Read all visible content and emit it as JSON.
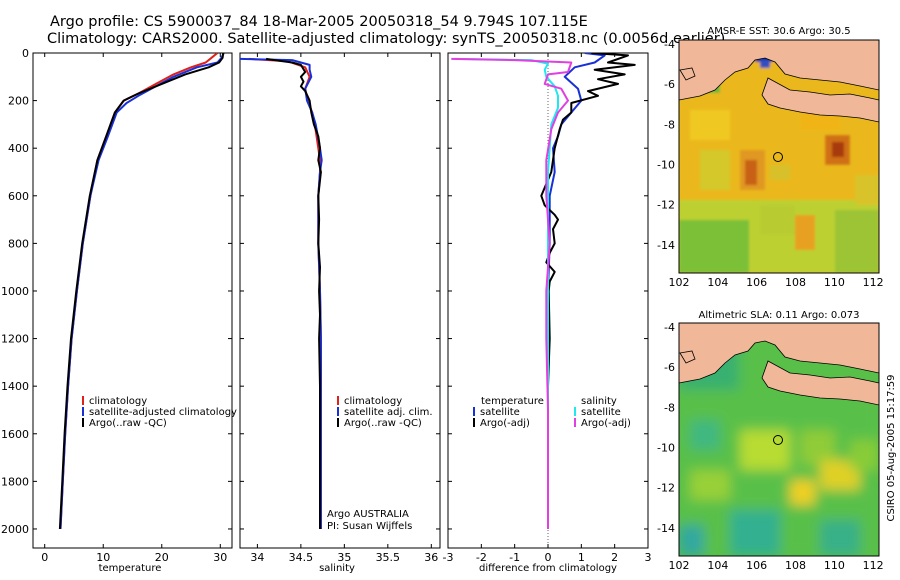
{
  "title_line1": "Argo profile: CS 5900037_84 18-Mar-2005 20050318_54 9.794S 107.115E",
  "title_line2": "Climatology: CARS2000. Satellite-adjusted climatology: synTS_20050318.nc (0.0056d earlier)",
  "side_label": "CSIRO 05-Aug-2005 15:17:59",
  "colors": {
    "clim": "#e0201c",
    "sat": "#1830d8",
    "argo": "#000000",
    "sal_sat": "#20e8f0",
    "sal_argo": "#e040e0",
    "land": "#f0b898"
  },
  "chart_data": [
    {
      "id": "temperature",
      "type": "line",
      "xlabel": "temperature",
      "ylabel": "",
      "xlim": [
        -2,
        32
      ],
      "ylim": [
        2080,
        0
      ],
      "xticks": [
        "0",
        "10",
        "20",
        "30"
      ],
      "xtick_values": [
        0,
        10,
        20,
        30
      ],
      "yticks": [
        "0",
        "200",
        "400",
        "600",
        "800",
        "1000",
        "1200",
        "1400",
        "1600",
        "1800",
        "2000"
      ],
      "ytick_values": [
        0,
        200,
        400,
        600,
        800,
        1000,
        1200,
        1400,
        1600,
        1800,
        2000
      ],
      "legend": [
        "climatology",
        "satellite-adjusted climatology",
        "Argo(..raw -QC)"
      ],
      "series": [
        {
          "name": "climatology",
          "color": "#e0201c",
          "points": [
            [
              29.5,
              0
            ],
            [
              28.5,
              20
            ],
            [
              27.5,
              40
            ],
            [
              25,
              60
            ],
            [
              22,
              90
            ],
            [
              19,
              130
            ],
            [
              16,
              170
            ],
            [
              13.5,
              200
            ],
            [
              12,
              250
            ],
            [
              10.5,
              350
            ],
            [
              9,
              450
            ],
            [
              7.8,
              600
            ],
            [
              6.5,
              800
            ],
            [
              5.5,
              1000
            ],
            [
              4.6,
              1200
            ],
            [
              4,
              1400
            ],
            [
              3.5,
              1600
            ],
            [
              3.1,
              1800
            ],
            [
              2.7,
              2000
            ]
          ]
        },
        {
          "name": "satellite-adjusted climatology",
          "color": "#1830d8",
          "points": [
            [
              30.6,
              0
            ],
            [
              30.2,
              20
            ],
            [
              29.5,
              40
            ],
            [
              26,
              60
            ],
            [
              22,
              100
            ],
            [
              19,
              140
            ],
            [
              16,
              180
            ],
            [
              14,
              210
            ],
            [
              12.3,
              250
            ],
            [
              10.8,
              350
            ],
            [
              9.2,
              450
            ],
            [
              7.8,
              600
            ],
            [
              6.5,
              800
            ],
            [
              5.5,
              1000
            ],
            [
              4.6,
              1200
            ],
            [
              4,
              1400
            ],
            [
              3.5,
              1600
            ],
            [
              3.1,
              1800
            ],
            [
              2.7,
              2000
            ]
          ]
        },
        {
          "name": "Argo(..raw -QC)",
          "color": "#000000",
          "points": [
            [
              30.5,
              0
            ],
            [
              30.4,
              20
            ],
            [
              29.8,
              40
            ],
            [
              28,
              60
            ],
            [
              24,
              90
            ],
            [
              20,
              130
            ],
            [
              16,
              170
            ],
            [
              13.5,
              200
            ],
            [
              12,
              250
            ],
            [
              10.5,
              350
            ],
            [
              9,
              450
            ],
            [
              7.7,
              600
            ],
            [
              6.4,
              800
            ],
            [
              5.4,
              1000
            ],
            [
              4.5,
              1200
            ],
            [
              3.9,
              1400
            ],
            [
              3.4,
              1600
            ],
            [
              3,
              1800
            ],
            [
              2.6,
              2000
            ]
          ]
        }
      ]
    },
    {
      "id": "salinity",
      "type": "line",
      "xlabel": "salinity",
      "xlim": [
        33.8,
        36.1
      ],
      "ylim": [
        2080,
        0
      ],
      "xticks": [
        "34",
        "34.5",
        "35",
        "35.5",
        "36"
      ],
      "xtick_values": [
        34,
        34.5,
        35,
        35.5,
        36
      ],
      "legend": [
        "climatology",
        "satellite adj. clim.",
        "Argo(..raw -QC)"
      ],
      "annotation_line1": "Argo AUSTRALIA",
      "annotation_line2": "PI: Susan Wijffels",
      "series": [
        {
          "name": "climatology",
          "color": "#e0201c",
          "points": [
            [
              33.9,
              25
            ],
            [
              34.35,
              35
            ],
            [
              34.55,
              60
            ],
            [
              34.6,
              100
            ],
            [
              34.55,
              150
            ],
            [
              34.58,
              200
            ],
            [
              34.63,
              250
            ],
            [
              34.66,
              300
            ],
            [
              34.7,
              400
            ],
            [
              34.72,
              450
            ],
            [
              34.72,
              500
            ],
            [
              34.7,
              600
            ],
            [
              34.7,
              800
            ],
            [
              34.72,
              1000
            ],
            [
              34.73,
              1200
            ],
            [
              34.73,
              1400
            ],
            [
              34.73,
              1600
            ],
            [
              34.73,
              1800
            ],
            [
              34.73,
              2000
            ]
          ]
        },
        {
          "name": "satellite adj. clim.",
          "color": "#1830d8",
          "points": [
            [
              33.8,
              25
            ],
            [
              34.4,
              30
            ],
            [
              34.6,
              50
            ],
            [
              34.6,
              70
            ],
            [
              34.62,
              100
            ],
            [
              34.55,
              150
            ],
            [
              34.57,
              200
            ],
            [
              34.63,
              250
            ],
            [
              34.67,
              300
            ],
            [
              34.72,
              400
            ],
            [
              34.74,
              450
            ],
            [
              34.72,
              500
            ],
            [
              34.7,
              600
            ],
            [
              34.7,
              800
            ],
            [
              34.72,
              1000
            ],
            [
              34.73,
              1200
            ],
            [
              34.73,
              1400
            ],
            [
              34.73,
              1600
            ],
            [
              34.73,
              1800
            ],
            [
              34.73,
              2000
            ]
          ]
        },
        {
          "name": "Argo(..raw -QC)",
          "color": "#000000",
          "points": [
            [
              34.1,
              25
            ],
            [
              34.2,
              30
            ],
            [
              34.4,
              40
            ],
            [
              34.5,
              50
            ],
            [
              34.55,
              80
            ],
            [
              34.5,
              100
            ],
            [
              34.53,
              120
            ],
            [
              34.5,
              140
            ],
            [
              34.55,
              160
            ],
            [
              34.6,
              200
            ],
            [
              34.62,
              250
            ],
            [
              34.65,
              300
            ],
            [
              34.7,
              350
            ],
            [
              34.72,
              400
            ],
            [
              34.7,
              450
            ],
            [
              34.73,
              500
            ],
            [
              34.7,
              600
            ],
            [
              34.71,
              700
            ],
            [
              34.7,
              800
            ],
            [
              34.72,
              900
            ],
            [
              34.71,
              1000
            ],
            [
              34.72,
              1100
            ],
            [
              34.71,
              1200
            ],
            [
              34.72,
              1400
            ],
            [
              34.72,
              1600
            ],
            [
              34.72,
              1800
            ],
            [
              34.72,
              2000
            ]
          ]
        }
      ]
    },
    {
      "id": "difference",
      "type": "line",
      "xlabel": "difference from climatology",
      "xlim": [
        -3,
        3
      ],
      "ylim": [
        2080,
        0
      ],
      "xticks": [
        "-3",
        "-2",
        "-1",
        "0",
        "1",
        "2",
        "3"
      ],
      "xtick_values": [
        -3,
        -2,
        -1,
        0,
        1,
        2,
        3
      ],
      "legend_left_title": "temperature",
      "legend_left": [
        "satellite",
        "Argo(-adj)"
      ],
      "legend_right_title": "salinity",
      "legend_right": [
        "satellite",
        "Argo(-adj)"
      ],
      "series": [
        {
          "name": "temperature satellite",
          "color": "#1830d8",
          "points": [
            [
              1.1,
              0
            ],
            [
              1.7,
              10
            ],
            [
              1.4,
              40
            ],
            [
              0.8,
              60
            ],
            [
              0.5,
              100
            ],
            [
              0.9,
              150
            ],
            [
              1,
              200
            ],
            [
              0.7,
              250
            ],
            [
              0.4,
              300
            ],
            [
              0.3,
              350
            ],
            [
              0.15,
              400
            ],
            [
              0.2,
              500
            ],
            [
              0.05,
              600
            ],
            [
              0.05,
              800
            ],
            [
              0,
              1000
            ],
            [
              0,
              1200
            ],
            [
              0,
              1500
            ],
            [
              0,
              1800
            ],
            [
              0,
              2000
            ]
          ]
        },
        {
          "name": "temperature Argo(-adj)",
          "color": "#000000",
          "points": [
            [
              1.3,
              0
            ],
            [
              2.4,
              10
            ],
            [
              1.8,
              40
            ],
            [
              2.6,
              50
            ],
            [
              1.4,
              70
            ],
            [
              2.3,
              90
            ],
            [
              1.5,
              110
            ],
            [
              2.1,
              130
            ],
            [
              1.2,
              160
            ],
            [
              1.5,
              180
            ],
            [
              0.7,
              210
            ],
            [
              0.7,
              250
            ],
            [
              0.45,
              280
            ],
            [
              0.35,
              320
            ],
            [
              0.2,
              400
            ],
            [
              0.1,
              500
            ],
            [
              -0.2,
              600
            ],
            [
              -0.1,
              640
            ],
            [
              0.2,
              680
            ],
            [
              0.3,
              700
            ],
            [
              0.15,
              740
            ],
            [
              0.2,
              800
            ],
            [
              0.05,
              840
            ],
            [
              -0.05,
              880
            ],
            [
              0.2,
              920
            ],
            [
              0.05,
              960
            ],
            [
              0.02,
              1000
            ],
            [
              0.05,
              1200
            ],
            [
              0,
              1400
            ],
            [
              0,
              1600
            ],
            [
              0,
              1800
            ],
            [
              0,
              2000
            ]
          ]
        },
        {
          "name": "salinity satellite",
          "color": "#20e8f0",
          "points": [
            [
              -2.8,
              25
            ],
            [
              -0.5,
              30
            ],
            [
              0,
              45
            ],
            [
              -0.1,
              70
            ],
            [
              -0.05,
              100
            ],
            [
              0.2,
              140
            ],
            [
              0.3,
              180
            ],
            [
              0.3,
              230
            ],
            [
              0.1,
              300
            ],
            [
              0.05,
              400
            ],
            [
              0,
              500
            ],
            [
              0,
              700
            ],
            [
              0,
              1000
            ],
            [
              0,
              1200
            ],
            [
              0,
              1500
            ],
            [
              0,
              1800
            ],
            [
              0,
              2000
            ]
          ]
        },
        {
          "name": "salinity Argo(-adj)",
          "color": "#e040e0",
          "points": [
            [
              -2.9,
              25
            ],
            [
              -1,
              30
            ],
            [
              0.7,
              40
            ],
            [
              0.6,
              80
            ],
            [
              0,
              90
            ],
            [
              -0.1,
              130
            ],
            [
              0.4,
              150
            ],
            [
              0.6,
              200
            ],
            [
              0.3,
              250
            ],
            [
              0.1,
              320
            ],
            [
              -0.05,
              450
            ],
            [
              -0.05,
              600
            ],
            [
              0.05,
              800
            ],
            [
              -0.05,
              1000
            ],
            [
              -0.05,
              1200
            ],
            [
              0,
              1500
            ],
            [
              0,
              1800
            ],
            [
              0,
              2000
            ]
          ]
        }
      ]
    },
    {
      "id": "sst_map",
      "type": "heatmap",
      "title": "AMSR-E SST: 30.6 Argo: 30.5",
      "xlim": [
        102,
        112.3
      ],
      "ylim": [
        -15.4,
        -3.8
      ],
      "xticks": [
        "102",
        "104",
        "106",
        "108",
        "110",
        "112"
      ],
      "xtick_values": [
        102,
        104,
        106,
        108,
        110,
        112
      ],
      "yticks": [
        "-4",
        "-6",
        "-8",
        "-10",
        "-12",
        "-14"
      ],
      "ytick_values": [
        -4,
        -6,
        -8,
        -10,
        -12,
        -14
      ],
      "argo_position": [
        107.115,
        -9.794
      ]
    },
    {
      "id": "sla_map",
      "type": "heatmap",
      "title": "Altimetric SLA: 0.11 Argo: 0.073",
      "xlim": [
        102,
        112.3
      ],
      "ylim": [
        -15.4,
        -3.8
      ],
      "xticks": [
        "102",
        "104",
        "106",
        "108",
        "110",
        "112"
      ],
      "xtick_values": [
        102,
        104,
        106,
        108,
        110,
        112
      ],
      "yticks": [
        "-4",
        "-6",
        "-8",
        "-10",
        "-12",
        "-14"
      ],
      "ytick_values": [
        -4,
        -6,
        -8,
        -10,
        -12,
        -14
      ],
      "argo_position": [
        107.115,
        -9.794
      ]
    }
  ]
}
